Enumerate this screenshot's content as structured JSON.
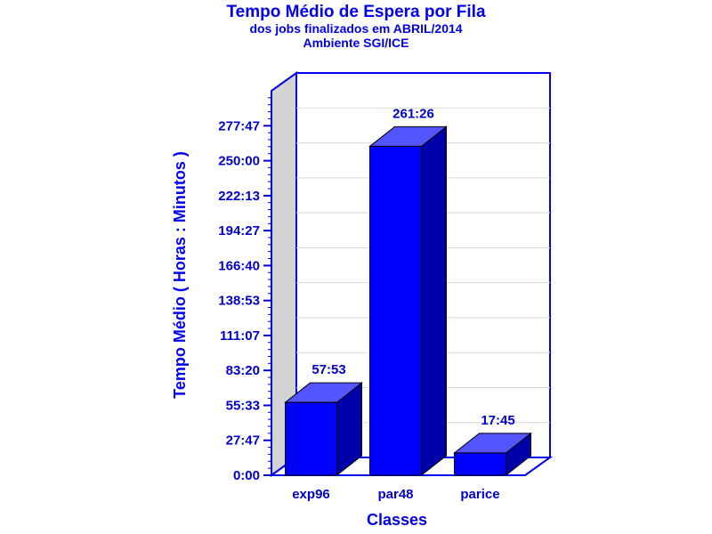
{
  "chart_data": {
    "type": "bar",
    "title": "Tempo Médio de Espera por Fila",
    "subtitle_1": "dos jobs finalizados em ABRIL/2014",
    "subtitle_2": "Ambiente SGI/ICE",
    "xlabel": "Classes",
    "ylabel": "Tempo Médio ( Horas : Minutos )",
    "categories": [
      "exp96",
      "par48",
      "parice"
    ],
    "values": [
      57.883,
      261.433,
      17.75
    ],
    "value_labels": [
      "57:53",
      "261:26",
      "17:45"
    ],
    "y_ticks": [
      0,
      27.783,
      55.55,
      83.333,
      111.117,
      138.883,
      166.667,
      194.45,
      222.217,
      250.0,
      277.783
    ],
    "y_tick_labels": [
      "0:00",
      "27:47",
      "55:33",
      "83:20",
      "111:07",
      "138:53",
      "166:40",
      "194:27",
      "222:13",
      "250:00",
      "277:47"
    ],
    "ylim": [
      0,
      305.6
    ],
    "grid": true,
    "colors": {
      "bar_front": "#0000ff",
      "bar_top": "#5555ff",
      "bar_side": "#0000aa",
      "text": "#0000cc",
      "wall": "#d3d3d3",
      "grid": "#d8d8d8"
    }
  }
}
